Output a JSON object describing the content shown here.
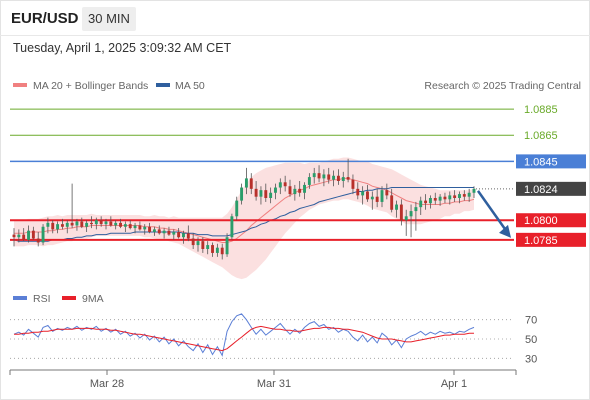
{
  "header": {
    "pair": "EUR/USD",
    "timeframe": "30 MIN",
    "datetime": "Tuesday, April 1, 2025 3:09:32 AM CET"
  },
  "legend": {
    "ma20": "MA 20 + Bollinger Bands",
    "ma50": "MA 50",
    "credit": "Research © 2025 Trading Central",
    "rsi": "RSI",
    "ma9": "9MA"
  },
  "colors": {
    "support": "#e8202a",
    "resistance_solid": "#4a7fd6",
    "resistance_target": "#6aaa2a",
    "ma20_band": "#f7c6c6",
    "ma20": "#f08080",
    "ma50": "#2f5f9e",
    "candle": "#2a9d6a",
    "rsi": "#5b7fd6",
    "rsi_ma": "#e8202a",
    "current": "#444444",
    "arrow": "#2f5f9e"
  },
  "levels": {
    "r2": "1.0885",
    "r1": "1.0865",
    "pivot": "1.0845",
    "current": "1.0824",
    "s1": "1.0800",
    "s2": "1.0785"
  },
  "rsi_ticks": [
    "70",
    "50",
    "30"
  ],
  "x_ticks": [
    "Mar 28",
    "Mar 31",
    "Apr 1"
  ],
  "chart_data": {
    "type": "candlestick",
    "title": "EUR/USD",
    "timeframe": "30 MIN",
    "y_range": [
      1.0765,
      1.0895
    ],
    "x_categories": [
      "Mar 28",
      "Mar 31",
      "Apr 1"
    ],
    "levels": [
      {
        "value": 1.0885,
        "role": "resistance target"
      },
      {
        "value": 1.0865,
        "role": "resistance target"
      },
      {
        "value": 1.0845,
        "role": "pivot"
      },
      {
        "value": 1.0824,
        "role": "last price"
      },
      {
        "value": 1.08,
        "role": "support"
      },
      {
        "value": 1.0785,
        "role": "support target"
      }
    ],
    "ohlc": [
      [
        1.0789,
        1.0794,
        1.078,
        1.0787
      ],
      [
        1.0787,
        1.0793,
        1.0783,
        1.0789
      ],
      [
        1.0789,
        1.0794,
        1.0784,
        1.0785
      ],
      [
        1.0785,
        1.0796,
        1.0783,
        1.0792
      ],
      [
        1.0792,
        1.0795,
        1.0785,
        1.0786
      ],
      [
        1.0786,
        1.0791,
        1.078,
        1.0783
      ],
      [
        1.0783,
        1.0797,
        1.0781,
        1.0795
      ],
      [
        1.0795,
        1.0802,
        1.079,
        1.0798
      ],
      [
        1.0798,
        1.08,
        1.079,
        1.0793
      ],
      [
        1.0793,
        1.0799,
        1.079,
        1.0797
      ],
      [
        1.0797,
        1.0801,
        1.0793,
        1.0795
      ],
      [
        1.0795,
        1.08,
        1.079,
        1.0798
      ],
      [
        1.0798,
        1.0828,
        1.0794,
        1.0796
      ],
      [
        1.0796,
        1.0801,
        1.0792,
        1.0799
      ],
      [
        1.0799,
        1.0802,
        1.0794,
        1.0795
      ],
      [
        1.0795,
        1.08,
        1.0791,
        1.0798
      ],
      [
        1.0798,
        1.0803,
        1.0794,
        1.0797
      ],
      [
        1.0797,
        1.0802,
        1.0793,
        1.08
      ],
      [
        1.08,
        1.0803,
        1.0795,
        1.0797
      ],
      [
        1.0797,
        1.0801,
        1.0793,
        1.0799
      ],
      [
        1.0799,
        1.0803,
        1.0795,
        1.0796
      ],
      [
        1.0796,
        1.08,
        1.0793,
        1.0798
      ],
      [
        1.0798,
        1.0801,
        1.0794,
        1.0795
      ],
      [
        1.0795,
        1.0799,
        1.0791,
        1.0797
      ],
      [
        1.0797,
        1.08,
        1.0793,
        1.0794
      ],
      [
        1.0794,
        1.0798,
        1.079,
        1.0796
      ],
      [
        1.0796,
        1.0799,
        1.0792,
        1.0793
      ],
      [
        1.0793,
        1.0797,
        1.0789,
        1.0795
      ],
      [
        1.0795,
        1.0798,
        1.079,
        1.0791
      ],
      [
        1.0791,
        1.0795,
        1.0788,
        1.0793
      ],
      [
        1.0793,
        1.0796,
        1.0789,
        1.079
      ],
      [
        1.079,
        1.0794,
        1.0786,
        1.0792
      ],
      [
        1.0792,
        1.0795,
        1.0788,
        1.0789
      ],
      [
        1.0789,
        1.0793,
        1.0785,
        1.0791
      ],
      [
        1.0791,
        1.0794,
        1.0786,
        1.0787
      ],
      [
        1.0787,
        1.0792,
        1.0782,
        1.079
      ],
      [
        1.079,
        1.0796,
        1.0784,
        1.0786
      ],
      [
        1.0786,
        1.079,
        1.0778,
        1.0781
      ],
      [
        1.0781,
        1.0787,
        1.0776,
        1.0784
      ],
      [
        1.0784,
        1.0787,
        1.0775,
        1.0778
      ],
      [
        1.0778,
        1.0784,
        1.0774,
        1.0781
      ],
      [
        1.0781,
        1.0783,
        1.0772,
        1.0775
      ],
      [
        1.0775,
        1.0782,
        1.0772,
        1.0779
      ],
      [
        1.0779,
        1.0782,
        1.077,
        1.0774
      ],
      [
        1.0774,
        1.079,
        1.0772,
        1.0787
      ],
      [
        1.0787,
        1.0805,
        1.0785,
        1.0803
      ],
      [
        1.0803,
        1.0818,
        1.08,
        1.0815
      ],
      [
        1.0815,
        1.0828,
        1.0812,
        1.0825
      ],
      [
        1.0825,
        1.084,
        1.082,
        1.0832
      ],
      [
        1.0832,
        1.0836,
        1.082,
        1.0824
      ],
      [
        1.0824,
        1.083,
        1.0815,
        1.0818
      ],
      [
        1.0818,
        1.0826,
        1.0812,
        1.0823
      ],
      [
        1.0823,
        1.0828,
        1.0814,
        1.0817
      ],
      [
        1.0817,
        1.0825,
        1.0813,
        1.0821
      ],
      [
        1.0821,
        1.0828,
        1.0816,
        1.0825
      ],
      [
        1.0825,
        1.0832,
        1.082,
        1.0829
      ],
      [
        1.0829,
        1.0834,
        1.0822,
        1.0826
      ],
      [
        1.0826,
        1.0831,
        1.0818,
        1.082
      ],
      [
        1.082,
        1.0827,
        1.0815,
        1.0824
      ],
      [
        1.0824,
        1.083,
        1.0818,
        1.0821
      ],
      [
        1.0821,
        1.0829,
        1.0816,
        1.0827
      ],
      [
        1.0827,
        1.0836,
        1.0824,
        1.0833
      ],
      [
        1.0833,
        1.084,
        1.0828,
        1.0836
      ],
      [
        1.0836,
        1.0842,
        1.0829,
        1.0832
      ],
      [
        1.0832,
        1.0839,
        1.0826,
        1.0835
      ],
      [
        1.0835,
        1.084,
        1.0828,
        1.0831
      ],
      [
        1.0831,
        1.0838,
        1.0826,
        1.0834
      ],
      [
        1.0834,
        1.0839,
        1.0827,
        1.083
      ],
      [
        1.083,
        1.0837,
        1.0825,
        1.0833
      ],
      [
        1.0833,
        1.0847,
        1.0829,
        1.0831
      ],
      [
        1.0831,
        1.0835,
        1.082,
        1.0824
      ],
      [
        1.0824,
        1.0829,
        1.0816,
        1.0819
      ],
      [
        1.0819,
        1.0826,
        1.0812,
        1.0822
      ],
      [
        1.0822,
        1.0827,
        1.0814,
        1.0816
      ],
      [
        1.0816,
        1.0822,
        1.0808,
        1.0818
      ],
      [
        1.0818,
        1.0824,
        1.081,
        1.0814
      ],
      [
        1.0814,
        1.0826,
        1.081,
        1.0823
      ],
      [
        1.0823,
        1.0828,
        1.0816,
        1.0819
      ],
      [
        1.0819,
        1.0824,
        1.0806,
        1.0808
      ],
      [
        1.0808,
        1.0815,
        1.0802,
        1.0812
      ],
      [
        1.0812,
        1.0816,
        1.0796,
        1.08
      ],
      [
        1.08,
        1.0808,
        1.0788,
        1.0803
      ],
      [
        1.0803,
        1.0812,
        1.0787,
        1.0807
      ],
      [
        1.0807,
        1.0814,
        1.0792,
        1.081
      ],
      [
        1.081,
        1.0818,
        1.0804,
        1.0815
      ],
      [
        1.0815,
        1.082,
        1.0808,
        1.0813
      ],
      [
        1.0813,
        1.0819,
        1.0809,
        1.0817
      ],
      [
        1.0817,
        1.0821,
        1.0812,
        1.0815
      ],
      [
        1.0815,
        1.082,
        1.0811,
        1.0818
      ],
      [
        1.0818,
        1.0821,
        1.0813,
        1.0816
      ],
      [
        1.0816,
        1.0822,
        1.0812,
        1.0819
      ],
      [
        1.0819,
        1.0823,
        1.0814,
        1.0817
      ],
      [
        1.0817,
        1.0822,
        1.0813,
        1.082
      ],
      [
        1.082,
        1.0823,
        1.0815,
        1.0818
      ],
      [
        1.0818,
        1.0824,
        1.0814,
        1.0821
      ],
      [
        1.0821,
        1.0826,
        1.0817,
        1.0824
      ]
    ],
    "ma20": [
      1.079,
      1.079,
      1.079,
      1.0791,
      1.0791,
      1.0791,
      1.0791,
      1.0792,
      1.0792,
      1.0793,
      1.0793,
      1.0794,
      1.0794,
      1.0795,
      1.0795,
      1.0795,
      1.0796,
      1.0796,
      1.0796,
      1.0796,
      1.0796,
      1.0796,
      1.0796,
      1.0796,
      1.0796,
      1.0796,
      1.0796,
      1.0795,
      1.0795,
      1.0795,
      1.0794,
      1.0794,
      1.0793,
      1.0793,
      1.0792,
      1.0791,
      1.079,
      1.0789,
      1.0788,
      1.0787,
      1.0786,
      1.0785,
      1.0784,
      1.0783,
      1.0783,
      1.0784,
      1.0786,
      1.0789,
      1.0792,
      1.0796,
      1.0799,
      1.0802,
      1.0805,
      1.0808,
      1.0811,
      1.0814,
      1.0817,
      1.0819,
      1.0821,
      1.0823,
      1.0824,
      1.0826,
      1.0827,
      1.0828,
      1.0829,
      1.083,
      1.0831,
      1.0831,
      1.0832,
      1.0832,
      1.0831,
      1.083,
      1.0829,
      1.0828,
      1.0826,
      1.0825,
      1.0824,
      1.0823,
      1.0821,
      1.0819,
      1.0817,
      1.0815,
      1.0814,
      1.0813,
      1.0812,
      1.0812,
      1.0812,
      1.0812,
      1.0812,
      1.0813,
      1.0813,
      1.0814,
      1.0814,
      1.0815,
      1.0815,
      1.0816
    ],
    "band_width": [
      0.001,
      0.001,
      0.001,
      0.001,
      0.001,
      0.001,
      0.0011,
      0.0011,
      0.0011,
      0.0011,
      0.001,
      0.001,
      0.001,
      0.0009,
      0.0009,
      0.0009,
      0.0009,
      0.0008,
      0.0008,
      0.0008,
      0.0008,
      0.0008,
      0.0008,
      0.0008,
      0.0008,
      0.0008,
      0.0008,
      0.0008,
      0.0008,
      0.0009,
      0.0009,
      0.0009,
      0.0009,
      0.001,
      0.001,
      0.0011,
      0.0012,
      0.0013,
      0.0014,
      0.0015,
      0.0016,
      0.0017,
      0.0018,
      0.0019,
      0.0022,
      0.0026,
      0.003,
      0.0034,
      0.0036,
      0.0037,
      0.0037,
      0.0036,
      0.0035,
      0.0033,
      0.0031,
      0.0029,
      0.0027,
      0.0025,
      0.0023,
      0.0021,
      0.0019,
      0.0018,
      0.0017,
      0.0016,
      0.0016,
      0.0016,
      0.0016,
      0.0016,
      0.0016,
      0.0016,
      0.0016,
      0.0016,
      0.0016,
      0.0017,
      0.0017,
      0.0017,
      0.0017,
      0.0017,
      0.0018,
      0.0018,
      0.0018,
      0.0018,
      0.0017,
      0.0016,
      0.0015,
      0.0014,
      0.0013,
      0.0012,
      0.0011,
      0.001,
      0.001,
      0.0009,
      0.0009,
      0.0008,
      0.0008,
      0.0008
    ],
    "ma50": [
      1.0785,
      1.0784,
      1.0784,
      1.0784,
      1.0784,
      1.0784,
      1.0784,
      1.0784,
      1.0785,
      1.0785,
      1.0785,
      1.0786,
      1.0786,
      1.0787,
      1.0787,
      1.0788,
      1.0788,
      1.0789,
      1.0789,
      1.0789,
      1.079,
      1.079,
      1.079,
      1.079,
      1.079,
      1.0791,
      1.0791,
      1.0791,
      1.0791,
      1.0791,
      1.0791,
      1.0791,
      1.0791,
      1.0791,
      1.0791,
      1.079,
      1.079,
      1.079,
      1.0789,
      1.0789,
      1.0789,
      1.0788,
      1.0788,
      1.0788,
      1.0788,
      1.0789,
      1.079,
      1.0791,
      1.0792,
      1.0794,
      1.0795,
      1.0797,
      1.0798,
      1.08,
      1.0801,
      1.0803,
      1.0804,
      1.0806,
      1.0807,
      1.0809,
      1.081,
      1.0811,
      1.0812,
      1.0814,
      1.0815,
      1.0816,
      1.0817,
      1.0818,
      1.0819,
      1.082,
      1.0821,
      1.0822,
      1.0822,
      1.0823,
      1.0823,
      1.0824,
      1.0824,
      1.0824,
      1.0825,
      1.0825,
      1.0825,
      1.0825,
      1.0825,
      1.0825,
      1.0825,
      1.0825,
      1.0825,
      1.0825,
      1.0825,
      1.0825,
      1.0825,
      1.0825,
      1.0825,
      1.0825,
      1.0825,
      1.0825
    ],
    "rsi": {
      "y_range": [
        20,
        80
      ],
      "gridlines": [
        70,
        50,
        30
      ],
      "rsi": [
        55,
        57,
        54,
        60,
        56,
        52,
        62,
        64,
        58,
        61,
        59,
        62,
        60,
        63,
        59,
        62,
        60,
        63,
        58,
        61,
        57,
        60,
        55,
        58,
        53,
        56,
        51,
        55,
        49,
        53,
        47,
        52,
        45,
        50,
        43,
        48,
        42,
        38,
        45,
        36,
        44,
        34,
        42,
        33,
        58,
        68,
        74,
        76,
        70,
        62,
        55,
        60,
        54,
        58,
        62,
        66,
        60,
        55,
        60,
        56,
        62,
        66,
        68,
        63,
        65,
        60,
        62,
        57,
        60,
        58,
        52,
        48,
        54,
        47,
        52,
        46,
        56,
        52,
        44,
        49,
        41,
        50,
        53,
        55,
        58,
        54,
        57,
        55,
        58,
        56,
        57,
        55,
        58,
        57,
        60,
        62
      ],
      "ma9": [
        55,
        55,
        56,
        56,
        57,
        57,
        58,
        58,
        59,
        60,
        60,
        60,
        60,
        61,
        61,
        61,
        61,
        60,
        60,
        60,
        59,
        59,
        58,
        57,
        56,
        55,
        55,
        54,
        53,
        52,
        51,
        50,
        49,
        48,
        47,
        46,
        45,
        44,
        43,
        42,
        41,
        40,
        39,
        38,
        40,
        44,
        48,
        52,
        56,
        60,
        62,
        63,
        62,
        61,
        60,
        60,
        59,
        59,
        58,
        58,
        59,
        60,
        61,
        61,
        62,
        62,
        61,
        61,
        60,
        60,
        59,
        58,
        57,
        55,
        53,
        51,
        50,
        50,
        50,
        49,
        48,
        47,
        47,
        48,
        49,
        50,
        51,
        52,
        53,
        54,
        54,
        55,
        55,
        55,
        56,
        56
      ]
    }
  }
}
